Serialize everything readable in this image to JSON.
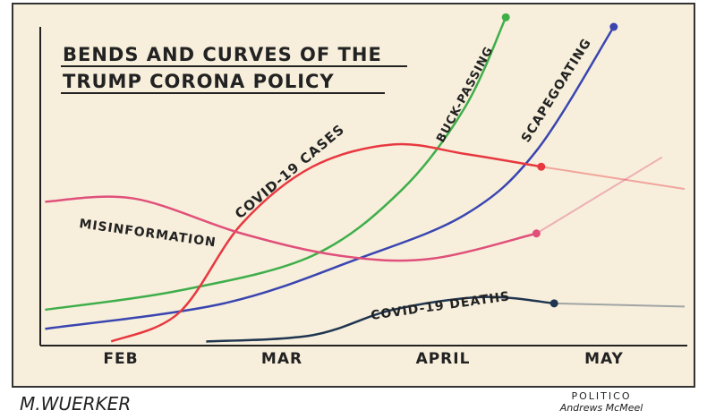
{
  "chart_data": {
    "type": "line",
    "title_line1": "BENDS AND CURVES OF THE",
    "title_line2": "TRUMP CORONA POLICY",
    "x_tick_labels": [
      "FEB",
      "MAR",
      "APRIL",
      "MAY"
    ],
    "x_ticks": [
      0,
      1,
      2,
      3
    ],
    "xlim": [
      -0.5,
      3.5
    ],
    "ylim": [
      0,
      100
    ],
    "grid": false,
    "series": [
      {
        "name": "BUCK-PASSING",
        "color": "#3fae4a",
        "x": [
          -0.47,
          0.36,
          1.19,
          1.75,
          2.14,
          2.39
        ],
        "y": [
          11,
          17,
          28,
          49,
          75,
          103
        ],
        "projection_x": [],
        "projection_y": []
      },
      {
        "name": "SCAPEGOATING",
        "color": "#3a45b0",
        "x": [
          -0.47,
          0.64,
          1.47,
          2.14,
          2.58,
          3.06
        ],
        "y": [
          5,
          13,
          27,
          41,
          61,
          100
        ],
        "projection_x": [],
        "projection_y": []
      },
      {
        "name": "COVID-19 CASES",
        "color": "#e8383f",
        "x": [
          -0.06,
          0.36,
          0.75,
          1.19,
          1.69,
          2.14,
          2.61
        ],
        "y": [
          1,
          10,
          38,
          56,
          63,
          60,
          56
        ],
        "projection_x": [
          2.61,
          3.5
        ],
        "projection_y": [
          56,
          49
        ]
      },
      {
        "name": "MISINFORMATION",
        "color": "#e0507a",
        "x": [
          -0.47,
          0.08,
          0.75,
          1.36,
          1.92,
          2.58
        ],
        "y": [
          45,
          46,
          35,
          28,
          27,
          35
        ],
        "projection_x": [
          2.58,
          3.36
        ],
        "projection_y": [
          35,
          59
        ]
      },
      {
        "name": "COVID-19 DEATHS",
        "color": "#1f3550",
        "x": [
          0.53,
          1.19,
          1.69,
          2.25,
          2.69
        ],
        "y": [
          1,
          3,
          11,
          15,
          13
        ],
        "projection_x": [
          2.69,
          3.5
        ],
        "projection_y": [
          13,
          12
        ]
      }
    ]
  },
  "signature": "M.WUERKER",
  "credit_line1": "POLITICO",
  "credit_line2": "Andrews McMeel"
}
